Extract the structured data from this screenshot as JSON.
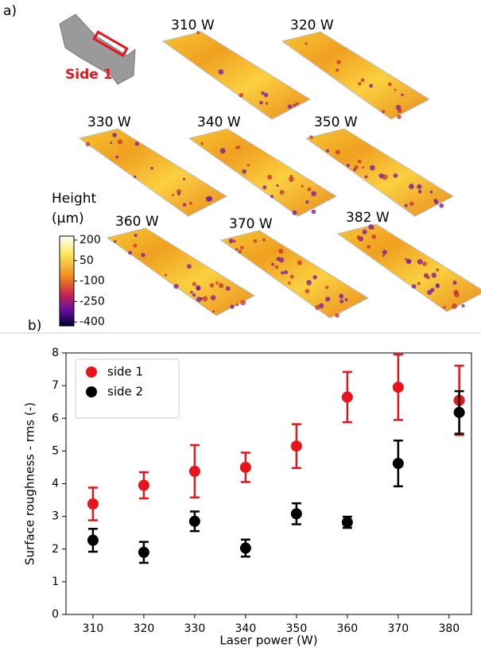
{
  "panel_a": {
    "label": "a)",
    "inset_label": "Side 1",
    "samples": [
      "310 W",
      "320 W",
      "330 W",
      "340 W",
      "350 W",
      "360 W",
      "370 W",
      "382 W"
    ],
    "colorbar": {
      "title_lines": [
        "Height",
        "(µm)"
      ],
      "clim": [
        -400,
        200
      ],
      "ticks": [
        200,
        50,
        -100,
        -250,
        -400
      ]
    }
  },
  "panel_b_label": "b)",
  "chart_data": {
    "type": "scatter",
    "x_label": "Laser power (W)",
    "y_label": "Surface roughness - rms (-)",
    "x": [
      310,
      320,
      330,
      340,
      350,
      360,
      370,
      382
    ],
    "series": [
      {
        "name": "side 1",
        "color": "#e8141b",
        "values": [
          3.38,
          3.95,
          4.38,
          4.5,
          5.15,
          6.65,
          6.95,
          6.55
        ],
        "errors": [
          0.5,
          0.4,
          0.8,
          0.45,
          0.67,
          0.77,
          1.0,
          1.06
        ]
      },
      {
        "name": "side 2",
        "color": "#000000",
        "values": [
          2.27,
          1.9,
          2.85,
          2.03,
          3.08,
          2.82,
          4.62,
          6.18
        ],
        "errors": [
          0.35,
          0.32,
          0.3,
          0.26,
          0.32,
          0.17,
          0.7,
          0.65
        ]
      }
    ],
    "xlim": [
      304.7,
      384.4
    ],
    "xticks": [
      310,
      320,
      330,
      340,
      350,
      360,
      370,
      380
    ],
    "ylim": [
      0,
      8
    ],
    "yticks": [
      0,
      1,
      2,
      3,
      4,
      5,
      6,
      7,
      8
    ],
    "legend": "upper left"
  }
}
